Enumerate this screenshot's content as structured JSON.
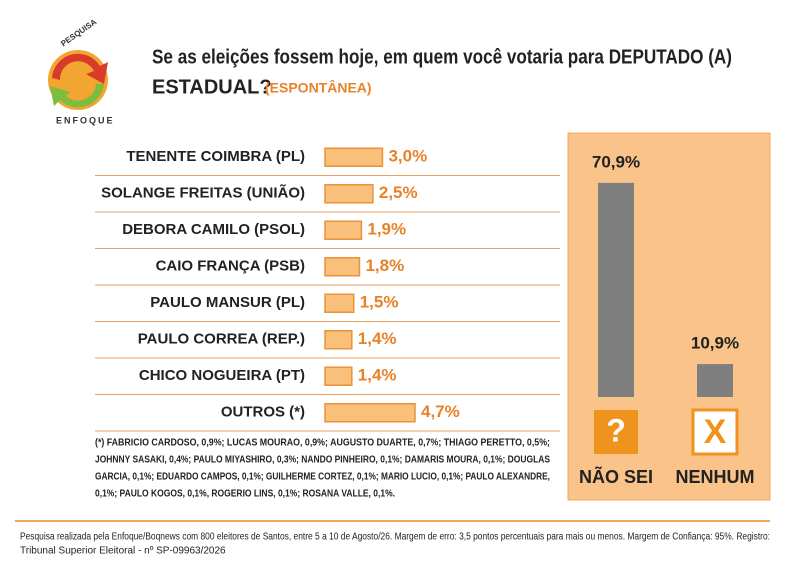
{
  "logo": {
    "top": "PESQUISA",
    "bottom": "ENFOQUE"
  },
  "title": [
    "Se as eleições fossem hoje, em quem você votaria para DEPUTADO (A)",
    "ESTADUAL?"
  ],
  "subtitle": "(ESPONTÂNEA)",
  "chart_data": [
    {
      "type": "hbar",
      "categories": [
        "TENENTE COIMBRA (PL)",
        "SOLANGE FREITAS (UNIÃO)",
        "DEBORA CAMILO (PSOL)",
        "CAIO FRANÇA (PSB)",
        "PAULO MANSUR (PL)",
        "PAULO CORREA (REP.)",
        "CHICO NOGUEIRA (PT)",
        "OUTROS (*)"
      ],
      "values": [
        3.0,
        2.5,
        1.9,
        1.8,
        1.5,
        1.4,
        1.4,
        4.7
      ],
      "value_labels": [
        "3,0%",
        "2,5%",
        "1,9%",
        "1,8%",
        "1,5%",
        "1,4%",
        "1,4%",
        "4,7%"
      ],
      "color": "#f9c07c"
    },
    {
      "type": "bar",
      "categories": [
        "NÃO SEI",
        "NENHUM"
      ],
      "icons": [
        "?",
        "X"
      ],
      "values": [
        70.9,
        10.9
      ],
      "value_labels": [
        "70,9%",
        "10,9%"
      ],
      "color": "#7f7f7f"
    }
  ],
  "footnote": [
    "(*) FABRICIO CARDOSO, 0,9%; LUCAS MOURAO, 0,9%; AUGUSTO DUARTE, 0,7%; THIAGO PERETTO, 0,5%;",
    "JOHNNY SASAKI, 0,4%; PAULO MIYASHIRO, 0,3%; NANDO PINHEIRO, 0,1%; DAMARIS MOURA, 0,1%; DOUGLAS",
    "GARCIA, 0,1%; EDUARDO CAMPOS, 0,1%; GUILHERME CORTEZ, 0,1%; MARIO LUCIO, 0,1%; PAULO ALEXANDRE,",
    "0,1%; PAULO KOGOS, 0,1%, ROGERIO LINS, 0,1%; ROSANA VALLE, 0,1%."
  ],
  "source": [
    "Pesquisa realizada pela Enfoque/Boqnews com 800 eleitores de Santos, entre 5 a 10 de Agosto/26. Margem de erro: 3,5 pontos percentuais para mais ou menos. Margem de Confiança: 95%. Registro:",
    "Tribunal Superior Eleitoral - nº SP-09963/2026"
  ]
}
